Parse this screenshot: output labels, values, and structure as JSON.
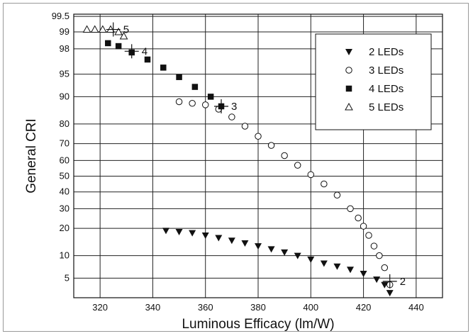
{
  "chart_data": {
    "type": "scatter",
    "title": "",
    "xlabel": "Luminous Efficacy (lm/W)",
    "ylabel": "General CRI",
    "xlim": [
      310,
      450
    ],
    "x_ticks": [
      320,
      340,
      360,
      380,
      400,
      420,
      440
    ],
    "y_scale": "probability",
    "y_ticks": [
      99.5,
      99,
      98,
      95,
      90,
      80,
      70,
      60,
      50,
      40,
      30,
      20,
      10,
      5
    ],
    "grid": true,
    "legend_position": "top-right",
    "series": [
      {
        "name": "2 LEDs",
        "marker": "triangle-down-filled",
        "x": [
          345,
          350,
          355,
          360,
          365,
          370,
          375,
          380,
          385,
          390,
          395,
          400,
          405,
          410,
          415,
          420,
          425,
          428,
          430
        ],
        "y": [
          19,
          18.5,
          18,
          17,
          16,
          15,
          14,
          13,
          12,
          11,
          10,
          9,
          8,
          7.3,
          6.6,
          5.8,
          4.8,
          4,
          3
        ]
      },
      {
        "name": "3 LEDs",
        "marker": "circle-open",
        "x": [
          350,
          355,
          360,
          365,
          370,
          375,
          380,
          385,
          390,
          395,
          400,
          405,
          410,
          415,
          418,
          420,
          422,
          424,
          426,
          428,
          430
        ],
        "y": [
          88.5,
          88,
          87.5,
          86,
          83,
          79,
          74,
          69,
          63,
          57,
          51,
          45,
          38,
          30,
          25,
          21,
          17,
          13,
          10,
          7,
          4
        ]
      },
      {
        "name": "4 LEDs",
        "marker": "square-filled",
        "x": [
          323,
          327,
          332,
          338,
          344,
          350,
          356,
          362,
          366
        ],
        "y": [
          98.4,
          98.2,
          97.7,
          97,
          96,
          94.5,
          92.5,
          90,
          87
        ]
      },
      {
        "name": "5 LEDs",
        "marker": "triangle-up-open",
        "x": [
          315,
          318,
          321,
          324,
          327,
          329
        ],
        "y": [
          99.1,
          99.1,
          99.1,
          99.1,
          99,
          98.8
        ]
      }
    ],
    "annotations": [
      {
        "text": "5",
        "x": 325,
        "y": 99.1
      },
      {
        "text": "4",
        "x": 332,
        "y": 97.8
      },
      {
        "text": "3",
        "x": 366,
        "y": 87
      },
      {
        "text": "2",
        "x": 430,
        "y": 4.5
      }
    ]
  }
}
